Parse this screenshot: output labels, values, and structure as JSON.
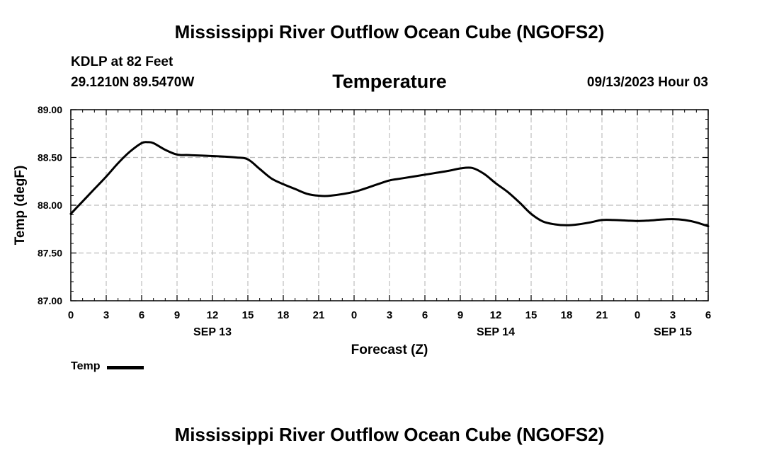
{
  "header": {
    "title": "Mississippi River Outflow Ocean Cube (NGOFS2)",
    "station": "KDLP at 82 Feet",
    "coords": "29.1210N  89.5470W",
    "variable": "Temperature",
    "datetime": "09/13/2023 Hour 03"
  },
  "footer": {
    "title": "Mississippi River Outflow Ocean Cube (NGOFS2)"
  },
  "legend": {
    "label": "Temp"
  },
  "chart_data": {
    "type": "line",
    "xlabel": "Forecast (Z)",
    "ylabel": "Temp (degF)",
    "xlim": [
      0,
      54
    ],
    "ylim": [
      87.0,
      89.0
    ],
    "grid": true,
    "legend_position": "bottom-left",
    "x_ticks": [
      0,
      3,
      6,
      9,
      12,
      15,
      18,
      21,
      24,
      27,
      30,
      33,
      36,
      39,
      42,
      45,
      48,
      51,
      54
    ],
    "x_tick_labels": [
      "0",
      "3",
      "6",
      "9",
      "12",
      "15",
      "18",
      "21",
      "0",
      "3",
      "6",
      "9",
      "12",
      "15",
      "18",
      "21",
      "0",
      "3",
      "6"
    ],
    "y_ticks": [
      87.0,
      87.5,
      88.0,
      88.5,
      89.0
    ],
    "y_tick_labels": [
      "87.00",
      "87.50",
      "88.00",
      "88.50",
      "89.00"
    ],
    "date_labels": [
      {
        "x": 12,
        "label": "SEP 13"
      },
      {
        "x": 36,
        "label": "SEP 14"
      },
      {
        "x": 51,
        "label": "SEP 15"
      }
    ],
    "series": [
      {
        "name": "Temp",
        "color": "#000000",
        "x": [
          0,
          1,
          2,
          3,
          4,
          5,
          6,
          6.5,
          7,
          8,
          9,
          10,
          12,
          14,
          15,
          16,
          17,
          18,
          19,
          20,
          21,
          22,
          24,
          26,
          27,
          28,
          30,
          32,
          33,
          34,
          35,
          36,
          37,
          38,
          39,
          40,
          41,
          42,
          43,
          44,
          45,
          46,
          47,
          48,
          49,
          50,
          51,
          52,
          53,
          54
        ],
        "values": [
          87.91,
          88.04,
          88.17,
          88.3,
          88.44,
          88.56,
          88.65,
          88.66,
          88.65,
          88.58,
          88.53,
          88.525,
          88.515,
          88.5,
          88.48,
          88.38,
          88.28,
          88.22,
          88.17,
          88.12,
          88.1,
          88.1,
          88.14,
          88.22,
          88.26,
          88.28,
          88.32,
          88.36,
          88.385,
          88.39,
          88.33,
          88.23,
          88.14,
          88.03,
          87.91,
          87.83,
          87.8,
          87.79,
          87.8,
          87.82,
          87.845,
          87.845,
          87.84,
          87.835,
          87.84,
          87.85,
          87.855,
          87.845,
          87.82,
          87.78
        ]
      }
    ]
  }
}
